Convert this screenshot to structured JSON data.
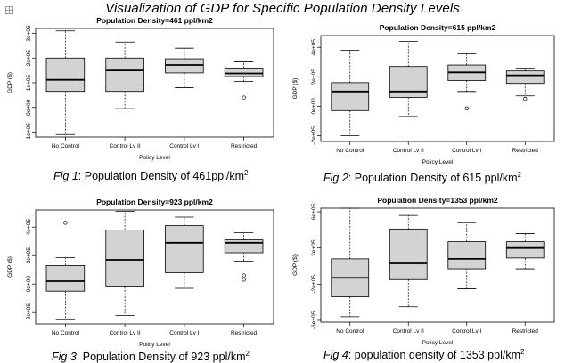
{
  "page_title": "Visualization of GDP for Specific Population Density Levels",
  "corner_icon": "expand-icon",
  "captions": [
    {
      "fig": "Fig 1",
      "text": ": Population Density of 461ppl/km",
      "sup": "2"
    },
    {
      "fig": "Fig 2",
      "text": ": Population Density of 615 ppl/km",
      "sup": "2"
    },
    {
      "fig": "Fig 3",
      "text": ": Population Density of 923 ppl/km",
      "sup": "2"
    },
    {
      "fig": "Fig 4",
      "text": ": population density of 1353 ppl/km",
      "sup": "2"
    }
  ],
  "chart_data": [
    {
      "type": "box",
      "title": "Population Density=461 ppl/km2",
      "xlabel": "Policy Level",
      "ylabel": "GDP ($)",
      "categories": [
        "No Control",
        "Control Lv II",
        "Control Lv I",
        "Restricted"
      ],
      "ylim": [
        -120000,
        320000
      ],
      "yticks": [
        -100000,
        0,
        100000,
        200000,
        300000
      ],
      "ytick_labels": [
        "-1e+05",
        "0e+00",
        "1e+05",
        "2e+05",
        "3e+05"
      ],
      "boxes": [
        {
          "min": -110000,
          "q1": 65000,
          "median": 112000,
          "q3": 200000,
          "max": 310000,
          "outliers": []
        },
        {
          "min": -5000,
          "q1": 65000,
          "median": 150000,
          "q3": 200000,
          "max": 265000,
          "outliers": []
        },
        {
          "min": 80000,
          "q1": 140000,
          "median": 172000,
          "q3": 197000,
          "max": 240000,
          "outliers": []
        },
        {
          "min": 105000,
          "q1": 125000,
          "median": 138000,
          "q3": 160000,
          "max": 185000,
          "outliers": [
            40000
          ]
        }
      ]
    },
    {
      "type": "box",
      "title": "Population Density=615 ppl/km2",
      "xlabel": "Policy Level",
      "ylabel": "GDP ($)",
      "categories": [
        "No Control",
        "Control Lv II",
        "Control Lv I",
        "Restricted"
      ],
      "ylim": [
        -240000,
        480000
      ],
      "yticks": [
        -200000,
        0,
        200000,
        400000
      ],
      "ytick_labels": [
        "-2e+05",
        "0e+00",
        "2e+05",
        "4e+05"
      ],
      "boxes": [
        {
          "min": -200000,
          "q1": -30000,
          "median": 100000,
          "q3": 160000,
          "max": 380000,
          "outliers": []
        },
        {
          "min": -70000,
          "q1": 60000,
          "median": 100000,
          "q3": 270000,
          "max": 440000,
          "outliers": []
        },
        {
          "min": 100000,
          "q1": 175000,
          "median": 230000,
          "q3": 280000,
          "max": 355000,
          "outliers": [
            -15000
          ]
        },
        {
          "min": 70000,
          "q1": 155000,
          "median": 210000,
          "q3": 240000,
          "max": 260000,
          "outliers": [
            50000
          ]
        }
      ]
    },
    {
      "type": "box",
      "title": "Population Density=923 ppl/km2",
      "xlabel": "Policy Level",
      "ylabel": "GDP ($)",
      "categories": [
        "No Control",
        "Control Lv II",
        "Control Lv I",
        "Restricted"
      ],
      "ylim": [
        -280000,
        520000
      ],
      "yticks": [
        -200000,
        0,
        200000,
        400000
      ],
      "ytick_labels": [
        "-2e+05",
        "0e+00",
        "2e+05",
        "4e+05"
      ],
      "boxes": [
        {
          "min": -250000,
          "q1": -50000,
          "median": 20000,
          "q3": 130000,
          "max": 185000,
          "outliers": [
            430000
          ]
        },
        {
          "min": -220000,
          "q1": -20000,
          "median": 170000,
          "q3": 380000,
          "max": 510000,
          "outliers": []
        },
        {
          "min": -30000,
          "q1": 80000,
          "median": 290000,
          "q3": 410000,
          "max": 470000,
          "outliers": []
        },
        {
          "min": 160000,
          "q1": 220000,
          "median": 290000,
          "q3": 310000,
          "max": 360000,
          "outliers": [
            30000,
            60000
          ]
        }
      ]
    },
    {
      "type": "box",
      "title": "Population Density=1353 ppl/km2",
      "xlabel": "Policy Level",
      "ylabel": "GDP ($)",
      "categories": [
        "No Control",
        "Control Lv II",
        "Control Lv I",
        "Restricted"
      ],
      "ylim": [
        -620000,
        640000
      ],
      "yticks": [
        -600000,
        -200000,
        200000,
        600000
      ],
      "ytick_labels": [
        "-6e+05",
        "-2e+05",
        "2e+05",
        "6e+05"
      ],
      "boxes": [
        {
          "min": -560000,
          "q1": -340000,
          "median": -130000,
          "q3": 80000,
          "max": 640000,
          "outliers": []
        },
        {
          "min": -450000,
          "q1": -150000,
          "median": 30000,
          "q3": 410000,
          "max": 560000,
          "outliers": []
        },
        {
          "min": -250000,
          "q1": -30000,
          "median": 80000,
          "q3": 270000,
          "max": 480000,
          "outliers": []
        },
        {
          "min": -30000,
          "q1": 90000,
          "median": 200000,
          "q3": 270000,
          "max": 360000,
          "outliers": []
        }
      ]
    }
  ]
}
